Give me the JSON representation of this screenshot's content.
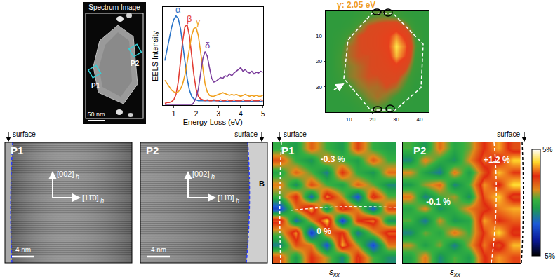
{
  "chart_data": [
    {
      "type": "line",
      "xlabel": "Energy Loss (eV)",
      "ylabel": "EELS Intensity",
      "x": [
        0.6,
        0.7,
        0.8,
        0.9,
        1.0,
        1.1,
        1.2,
        1.3,
        1.4,
        1.5,
        1.6,
        1.7,
        1.8,
        1.9,
        2.0,
        2.1,
        2.2,
        2.3,
        2.4,
        2.5,
        2.6,
        2.7,
        2.8,
        2.9,
        3.0,
        3.1,
        3.2,
        3.3,
        3.4,
        3.5,
        3.6,
        3.7,
        3.8,
        3.9,
        4.0,
        4.1,
        4.2,
        4.3,
        4.4,
        4.5,
        4.6,
        4.7,
        4.8,
        4.9,
        5.0
      ],
      "series": [
        {
          "name": "α",
          "color": "#2b74c8",
          "values": [
            0.5,
            0.62,
            0.75,
            0.87,
            0.96,
            1.0,
            0.97,
            0.86,
            0.68,
            0.48,
            0.3,
            0.17,
            0.1,
            0.07,
            0.06,
            0.05,
            0.05,
            0.05,
            0.05,
            0.05,
            0.05,
            0.05,
            0.05,
            0.05,
            0.05,
            0.04,
            0.04,
            0.04,
            0.04,
            0.04,
            0.04,
            0.04,
            0.04,
            0.04,
            0.04,
            0.04,
            0.04,
            0.04,
            0.04,
            0.04,
            0.04,
            0.04,
            0.04,
            0.04,
            0.04
          ]
        },
        {
          "name": "β",
          "color": "#e23d33",
          "values": [
            0.02,
            0.03,
            0.03,
            0.04,
            0.06,
            0.12,
            0.26,
            0.48,
            0.72,
            0.88,
            0.9,
            0.78,
            0.56,
            0.34,
            0.18,
            0.1,
            0.07,
            0.06,
            0.05,
            0.06,
            0.05,
            0.05,
            0.06,
            0.05,
            0.05,
            0.06,
            0.05,
            0.05,
            0.06,
            0.05,
            0.05,
            0.06,
            0.05,
            0.05,
            0.05,
            0.06,
            0.05,
            0.05,
            0.05,
            0.06,
            0.05,
            0.05,
            0.05,
            0.06,
            0.05
          ]
        },
        {
          "name": "γ",
          "color": "#f0a01e",
          "values": [
            0.28,
            0.24,
            0.2,
            0.17,
            0.15,
            0.14,
            0.15,
            0.18,
            0.24,
            0.34,
            0.48,
            0.64,
            0.78,
            0.86,
            0.87,
            0.78,
            0.6,
            0.4,
            0.24,
            0.15,
            0.11,
            0.1,
            0.1,
            0.11,
            0.12,
            0.13,
            0.14,
            0.13,
            0.12,
            0.11,
            0.12,
            0.11,
            0.12,
            0.11,
            0.1,
            0.11,
            0.12,
            0.11,
            0.1,
            0.11,
            0.1,
            0.11,
            0.1,
            0.1,
            0.11
          ]
        },
        {
          "name": "δ",
          "color": "#7b3d9c",
          "values": [
            0,
            0,
            0,
            0,
            0,
            0,
            0,
            0,
            0,
            0,
            0,
            0,
            0,
            0.03,
            0.08,
            0.18,
            0.35,
            0.52,
            0.6,
            0.55,
            0.42,
            0.3,
            0.26,
            0.27,
            0.29,
            0.31,
            0.3,
            0.33,
            0.32,
            0.35,
            0.33,
            0.36,
            0.38,
            0.4,
            0.42,
            0.38,
            0.4,
            0.37,
            0.36,
            0.38,
            0.35,
            0.37,
            0.36,
            0.38,
            0.37
          ]
        }
      ],
      "xlim": [
        0.5,
        5
      ],
      "xticks": [
        1,
        2,
        3,
        4,
        5
      ],
      "ylim": [
        0,
        1.1
      ],
      "tick_labels": "x"
    },
    {
      "type": "heatmap",
      "title": "γ: 2.05 eV",
      "x": [
        2,
        6,
        10,
        14,
        18,
        22,
        26,
        30,
        34,
        38,
        42
      ],
      "y": [
        2,
        6,
        10,
        14,
        18,
        22,
        26,
        30,
        34,
        38
      ],
      "z": [
        [
          0.15,
          0.15,
          0.15,
          0.2,
          0.3,
          0.35,
          0.35,
          0.3,
          0.2,
          0.15,
          0.15
        ],
        [
          0.15,
          0.15,
          0.2,
          0.35,
          0.5,
          0.55,
          0.6,
          0.65,
          0.45,
          0.2,
          0.15
        ],
        [
          0.15,
          0.2,
          0.35,
          0.5,
          0.55,
          0.6,
          0.7,
          0.85,
          0.7,
          0.3,
          0.15
        ],
        [
          0.15,
          0.25,
          0.45,
          0.5,
          0.55,
          0.6,
          0.7,
          0.95,
          0.8,
          0.35,
          0.15
        ],
        [
          0.15,
          0.3,
          0.45,
          0.5,
          0.5,
          0.55,
          0.65,
          0.9,
          0.75,
          0.3,
          0.15
        ],
        [
          0.15,
          0.3,
          0.4,
          0.45,
          0.5,
          0.55,
          0.6,
          0.7,
          0.55,
          0.25,
          0.15
        ],
        [
          0.15,
          0.25,
          0.4,
          0.45,
          0.5,
          0.5,
          0.55,
          0.55,
          0.4,
          0.2,
          0.15
        ],
        [
          0.15,
          0.2,
          0.3,
          0.4,
          0.45,
          0.45,
          0.5,
          0.45,
          0.3,
          0.15,
          0.15
        ],
        [
          0.15,
          0.15,
          0.2,
          0.3,
          0.4,
          0.45,
          0.4,
          0.3,
          0.2,
          0.15,
          0.15
        ],
        [
          0.15,
          0.15,
          0.15,
          0.2,
          0.3,
          0.35,
          0.3,
          0.2,
          0.15,
          0.15,
          0.15
        ]
      ],
      "xlim": [
        0,
        44
      ],
      "ylim": [
        40,
        0
      ],
      "xticks": [
        10,
        20,
        30,
        40
      ],
      "yticks": [
        10,
        20,
        30
      ]
    },
    {
      "type": "heatmap",
      "title": "P1",
      "surface": "surface",
      "annotations": [
        "-0.3 %",
        "0 %"
      ],
      "xlabel": {
        "text": "ε",
        "subscript": "xx"
      },
      "tick_labels": false,
      "zlim": [
        -5,
        5
      ],
      "z": [
        [
          0,
          -0.5,
          1.8,
          0.2,
          -0.6,
          2.2,
          0.1,
          -0.4
        ],
        [
          2.0,
          0.1,
          -0.8,
          1.5,
          0.3,
          -0.5,
          1.9,
          0.2
        ],
        [
          -0.3,
          1.7,
          0.4,
          -1.2,
          2.4,
          0.0,
          -0.7,
          1.6
        ],
        [
          1.4,
          -0.9,
          2.1,
          0.3,
          -0.4,
          1.8,
          0.5,
          -1.0
        ],
        [
          0.2,
          2.6,
          -1.8,
          3.2,
          1.0,
          -2.2,
          2.8,
          0.4
        ],
        [
          -2.5,
          1.5,
          3.6,
          -1.0,
          2.9,
          1.2,
          -2.0,
          2.2
        ],
        [
          2.8,
          -1.6,
          1.1,
          3.8,
          -2.6,
          2.4,
          3.1,
          -0.8
        ],
        [
          0.6,
          3.3,
          -2.8,
          1.7,
          2.6,
          -1.4,
          1.0,
          2.9
        ],
        [
          -1.2,
          2.0,
          1.4,
          -2.2,
          3.5,
          0.8,
          -2.4,
          1.5
        ],
        [
          1.9,
          -0.6,
          2.5,
          0.9,
          -1.1,
          2.7,
          0.3,
          -0.9
        ]
      ]
    },
    {
      "type": "heatmap",
      "title": "P2",
      "surface": "surface",
      "annotations": [
        "-0.1 %",
        "+1.2 %"
      ],
      "xlabel": {
        "text": "ε",
        "subscript": "xx"
      },
      "tick_labels": false,
      "zlim": [
        -5,
        5
      ],
      "colorbar_ticks": [
        {
          "value": 5,
          "label": "5%"
        },
        {
          "value": -5,
          "label": "-5%"
        }
      ],
      "z": [
        [
          0.3,
          -0.7,
          1.6,
          -0.2,
          0.5,
          2.5,
          3.4,
          2.0
        ],
        [
          -1.0,
          1.4,
          0.0,
          -0.8,
          1.2,
          3.0,
          2.2,
          3.8
        ],
        [
          1.2,
          -0.4,
          -1.3,
          1.5,
          -0.5,
          2.0,
          3.6,
          2.6
        ],
        [
          -0.6,
          0.8,
          1.7,
          -1.1,
          0.3,
          3.3,
          2.4,
          3.9
        ],
        [
          1.5,
          -1.2,
          0.2,
          0.9,
          -0.9,
          2.8,
          3.7,
          2.1
        ],
        [
          -0.3,
          1.3,
          -0.9,
          0.1,
          1.4,
          2.2,
          3.1,
          3.5
        ],
        [
          0.4,
          -1.4,
          1.1,
          -0.7,
          -0.2,
          3.4,
          2.5,
          2.9
        ],
        [
          -1.1,
          0.6,
          -0.2,
          1.6,
          0.2,
          2.6,
          3.8,
          2.3
        ],
        [
          1.0,
          -0.5,
          0.7,
          -1.3,
          0.9,
          3.1,
          2.0,
          3.6
        ],
        [
          -0.4,
          1.5,
          -1.0,
          0.4,
          -0.6,
          2.4,
          3.3,
          2.7
        ]
      ]
    }
  ],
  "images": {
    "spectrum_image": {
      "title": "Spectrum Image",
      "labels": [
        "P1",
        "P2"
      ],
      "scale_bar": "50 nm"
    },
    "hrtem": [
      {
        "label": "P1",
        "surface": "surface",
        "directions": [
          {
            "text": "[002]",
            "subscript": "h"
          },
          {
            "text": "[11̄0]",
            "subscript": "h"
          }
        ],
        "scale_bar": "4 nm"
      },
      {
        "label": "P2",
        "surface": "surface",
        "directions": [
          {
            "text": "[002]",
            "subscript": "h"
          },
          {
            "text": "[11̄0]",
            "subscript": "h"
          }
        ],
        "scale_bar": "4 nm",
        "boundary": "B"
      }
    ]
  }
}
